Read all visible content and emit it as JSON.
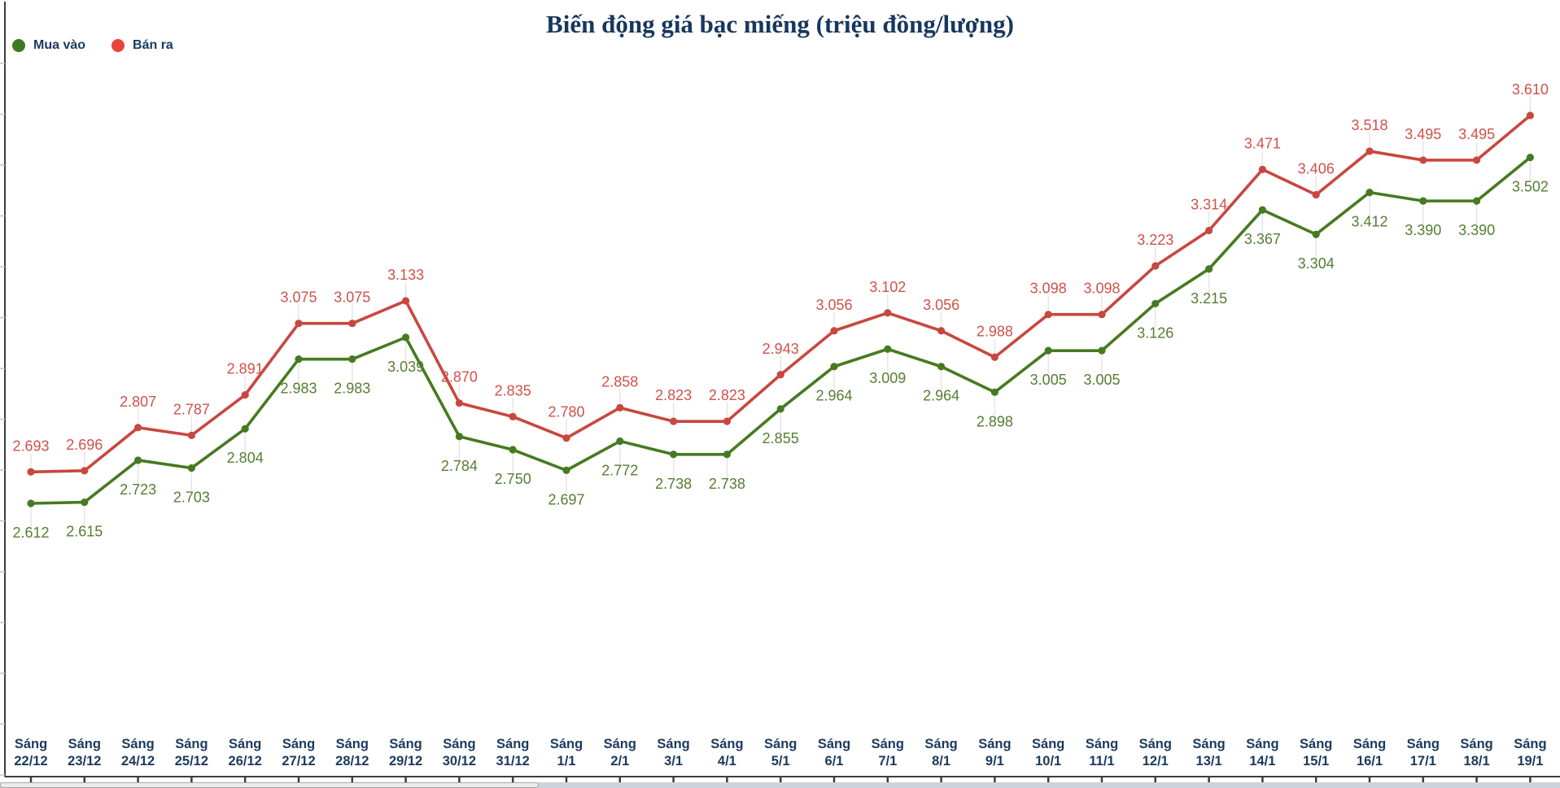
{
  "title": "Biến động giá bạc miếng (triệu đồng/lượng)",
  "legend": [
    {
      "label": "Mua vào",
      "color": "#3e7a22"
    },
    {
      "label": "Bán ra",
      "color": "#e8443b"
    }
  ],
  "icons": [
    {
      "name": "green-dot-icon",
      "meaning": "Mua vào series marker"
    },
    {
      "name": "red-dot-icon",
      "meaning": "Bán ra series marker"
    }
  ],
  "colors": {
    "title_text": "#17375d",
    "axis_label_text": "#1b3a5e",
    "axis_line": "#3d3d3d",
    "tick_minor": "#c4c4c4",
    "leader_line": "#e2e2e2",
    "buy_line": "#467a20",
    "buy_label": "#567d31",
    "sell_line": "#c8473f",
    "sell_label": "#d0514a",
    "background": "#ffffff"
  },
  "chart_data": {
    "type": "line",
    "title": "Biến động giá bạc miếng (triệu đồng/lượng)",
    "xlabel": "",
    "ylabel": "",
    "grid": false,
    "legend_position": "top-left",
    "y_axis_labels_visible": false,
    "ylim": [
      1.9,
      3.75
    ],
    "categories": [
      "Sáng 22/12",
      "Sáng 23/12",
      "Sáng 24/12",
      "Sáng 25/12",
      "Sáng 26/12",
      "Sáng 27/12",
      "Sáng 28/12",
      "Sáng 29/12",
      "Sáng 30/12",
      "Sáng 31/12",
      "Sáng 1/1",
      "Sáng 2/1",
      "Sáng 3/1",
      "Sáng 4/1",
      "Sáng 5/1",
      "Sáng 6/1",
      "Sáng 7/1",
      "Sáng 8/1",
      "Sáng 9/1",
      "Sáng 10/1",
      "Sáng 11/1",
      "Sáng 12/1",
      "Sáng 13/1",
      "Sáng 14/1",
      "Sáng 15/1",
      "Sáng 16/1",
      "Sáng 17/1",
      "Sáng 18/1",
      "Sáng 19/1"
    ],
    "series": [
      {
        "name": "Mua vào",
        "line_color": "#467a20",
        "label_color": "#567d31",
        "label_side": "below",
        "values": [
          2.612,
          2.615,
          2.723,
          2.703,
          2.804,
          2.983,
          2.983,
          3.039,
          2.784,
          2.75,
          2.697,
          2.772,
          2.738,
          2.738,
          2.855,
          2.964,
          3.009,
          2.964,
          2.898,
          3.005,
          3.005,
          3.126,
          3.215,
          3.367,
          3.304,
          3.412,
          3.39,
          3.39,
          3.502
        ],
        "labels": [
          "2.612",
          "2.615",
          "2.723",
          "2.703",
          "2.804",
          "2.983",
          "2.983",
          "3.039",
          "2.784",
          "2.750",
          "2.697",
          "2.772",
          "2.738",
          "2.738",
          "2.855",
          "2.964",
          "3.009",
          "2.964",
          "2.898",
          "3.005",
          "3.005",
          "3.126",
          "3.215",
          "3.367",
          "3.304",
          "3.412",
          "3.390",
          "3.390",
          "3.502"
        ]
      },
      {
        "name": "Bán ra",
        "line_color": "#c8473f",
        "label_color": "#d0514a",
        "label_side": "above",
        "values": [
          2.693,
          2.696,
          2.807,
          2.787,
          2.891,
          3.075,
          3.075,
          3.133,
          2.87,
          2.835,
          2.78,
          2.858,
          2.823,
          2.823,
          2.943,
          3.056,
          3.102,
          3.056,
          2.988,
          3.098,
          3.098,
          3.223,
          3.314,
          3.471,
          3.406,
          3.518,
          3.495,
          3.495,
          3.61
        ],
        "labels": [
          "2.693",
          "2.696",
          "2.807",
          "2.787",
          "2.891",
          "3.075",
          "3.075",
          "3.133",
          "2.870",
          "2.835",
          "2.780",
          "2.858",
          "2.823",
          "2.823",
          "2.943",
          "3.056",
          "3.102",
          "3.056",
          "2.988",
          "3.098",
          "3.098",
          "3.223",
          "3.314",
          "3.471",
          "3.406",
          "3.518",
          "3.495",
          "3.495",
          "3.610"
        ]
      }
    ]
  }
}
